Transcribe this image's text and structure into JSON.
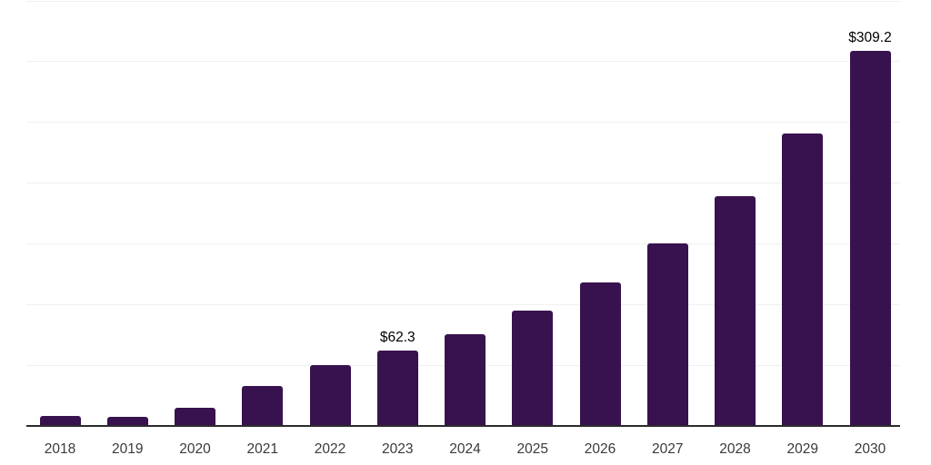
{
  "page": {
    "background_color": "#ffffff"
  },
  "chart_data": {
    "type": "bar",
    "title": "",
    "xlabel": "",
    "ylabel": "",
    "categories": [
      "2018",
      "2019",
      "2020",
      "2021",
      "2022",
      "2023",
      "2024",
      "2025",
      "2026",
      "2027",
      "2028",
      "2029",
      "2030"
    ],
    "values": [
      8.2,
      7.5,
      15.1,
      33,
      50.2,
      62.3,
      75.9,
      95,
      118.5,
      150.1,
      189,
      241,
      309.2
    ],
    "value_prefix": "$",
    "labeled_points": [
      {
        "category": "2023",
        "label": "$62.3"
      },
      {
        "category": "2030",
        "label": "$309.2"
      }
    ],
    "ylim": [
      0,
      350
    ],
    "grid_step": 50,
    "grid": "horizontal",
    "y_tick_labels_visible": false,
    "legend": "none",
    "colors": {
      "bar": "#38124e",
      "gridline": "#f0f0f1",
      "axis_line": "#2b2b2b",
      "value_label_text": "#000000",
      "tick_label_text": "#3a3a3a"
    }
  }
}
